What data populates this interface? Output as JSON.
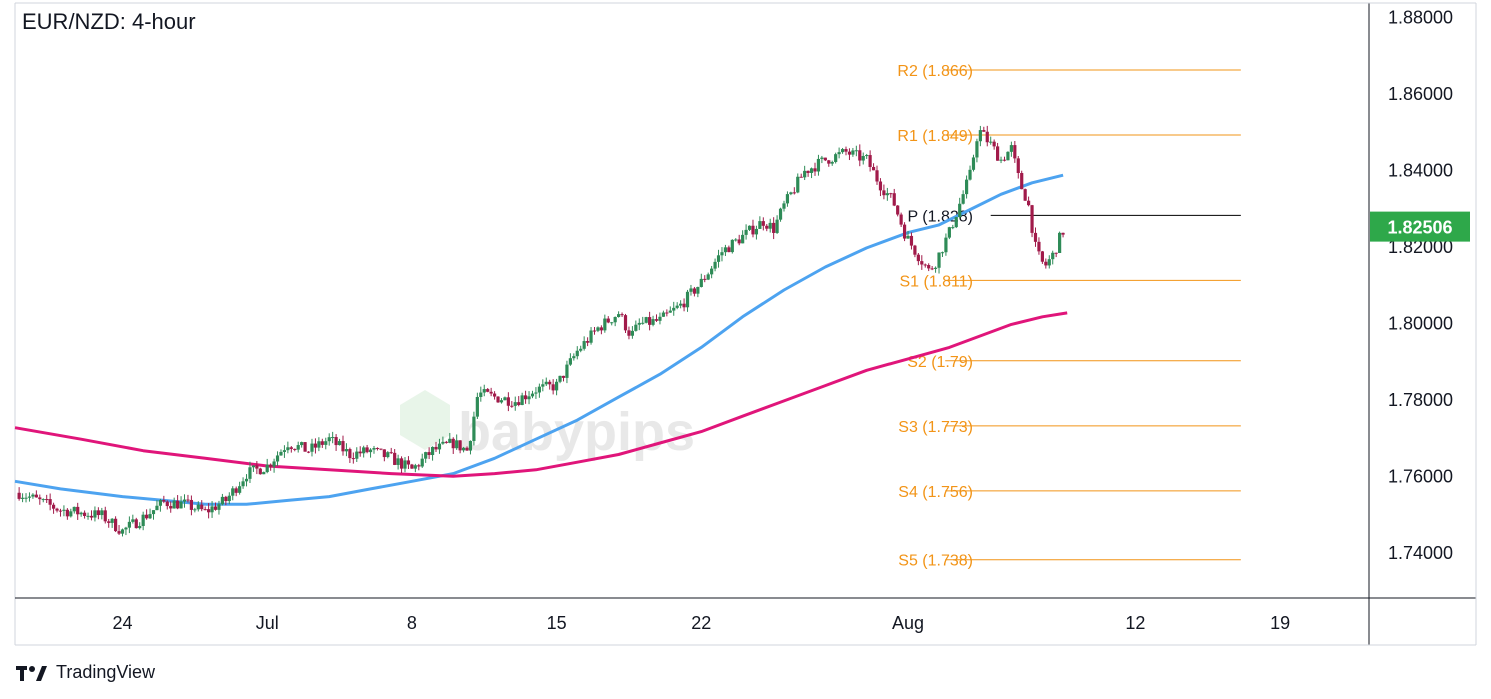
{
  "header": {
    "title": "EUR/NZD: 4-hour"
  },
  "branding": {
    "watermark": "babypips",
    "platform": "TradingView"
  },
  "colors": {
    "up": "#2e8b57",
    "down": "#a11a4a",
    "ma_fast": "#4da3f0",
    "ma_slow": "#e0157a",
    "level": "#f29417",
    "pivot": "#000000",
    "badge": "#2ea84a"
  },
  "chart_data": {
    "type": "candlestick",
    "title": "EUR/NZD: 4-hour",
    "ylim": [
      1.728,
      1.8835
    ],
    "y_ticks": [
      "1.74000",
      "1.76000",
      "1.78000",
      "1.80000",
      "1.82000",
      "1.84000",
      "1.86000",
      "1.88000"
    ],
    "x_ticks": [
      {
        "label": "24",
        "day": 24
      },
      {
        "label": "Jul",
        "day": 31
      },
      {
        "label": "8",
        "day": 38
      },
      {
        "label": "15",
        "day": 45
      },
      {
        "label": "22",
        "day": 52
      },
      {
        "label": "Aug",
        "day": 62
      },
      {
        "label": "12",
        "day": 73
      },
      {
        "label": "19",
        "day": 80
      }
    ],
    "x_range_days": [
      18.8,
      84.3
    ],
    "last_price": "1.82506",
    "levels": [
      {
        "name": "R2",
        "label": "R2 (1.866)",
        "value": 1.866
      },
      {
        "name": "R1",
        "label": "R1 (1.849)",
        "value": 1.849
      },
      {
        "name": "P",
        "label": "P (1.828)",
        "value": 1.828
      },
      {
        "name": "S1",
        "label": "S1 (1.811)",
        "value": 1.811
      },
      {
        "name": "S2",
        "label": "S2 (1.79)",
        "value": 1.79
      },
      {
        "name": "S3",
        "label": "S3 (1.773)",
        "value": 1.773
      },
      {
        "name": "S4",
        "label": "S4 (1.756)",
        "value": 1.756
      },
      {
        "name": "S5",
        "label": "S5 (1.738)",
        "value": 1.738
      }
    ],
    "close_path": [
      [
        19.0,
        1.7555
      ],
      [
        21.0,
        1.751
      ],
      [
        23.0,
        1.7495
      ],
      [
        24.0,
        1.7455
      ],
      [
        25.0,
        1.749
      ],
      [
        26.0,
        1.753
      ],
      [
        27.0,
        1.7525
      ],
      [
        28.0,
        1.7505
      ],
      [
        29.0,
        1.7535
      ],
      [
        30.0,
        1.7605
      ],
      [
        31.0,
        1.7625
      ],
      [
        32.0,
        1.7685
      ],
      [
        33.0,
        1.7665
      ],
      [
        34.0,
        1.7695
      ],
      [
        35.0,
        1.7655
      ],
      [
        36.0,
        1.7665
      ],
      [
        37.0,
        1.7645
      ],
      [
        38.0,
        1.7615
      ],
      [
        39.0,
        1.7665
      ],
      [
        40.0,
        1.7685
      ],
      [
        40.7,
        1.7665
      ],
      [
        41.2,
        1.7815
      ],
      [
        42.0,
        1.7805
      ],
      [
        43.0,
        1.7795
      ],
      [
        44.0,
        1.7825
      ],
      [
        45.0,
        1.7835
      ],
      [
        46.0,
        1.7925
      ],
      [
        47.0,
        1.7985
      ],
      [
        48.0,
        1.8025
      ],
      [
        48.6,
        1.7965
      ],
      [
        49.0,
        1.7995
      ],
      [
        50.0,
        1.8005
      ],
      [
        51.0,
        1.8045
      ],
      [
        52.0,
        1.8105
      ],
      [
        53.0,
        1.8185
      ],
      [
        54.0,
        1.8225
      ],
      [
        55.0,
        1.8265
      ],
      [
        55.5,
        1.8245
      ],
      [
        56.0,
        1.8305
      ],
      [
        57.0,
        1.8395
      ],
      [
        58.0,
        1.8425
      ],
      [
        59.0,
        1.8445
      ],
      [
        60.0,
        1.8425
      ],
      [
        60.6,
        1.8365
      ],
      [
        61.3,
        1.8315
      ],
      [
        61.9,
        1.8225
      ],
      [
        62.5,
        1.8175
      ],
      [
        63.0,
        1.8135
      ],
      [
        63.3,
        1.8155
      ],
      [
        64.0,
        1.8235
      ],
      [
        64.6,
        1.8325
      ],
      [
        65.0,
        1.8385
      ],
      [
        65.4,
        1.8505
      ],
      [
        66.0,
        1.8465
      ],
      [
        66.5,
        1.8425
      ],
      [
        67.0,
        1.8455
      ],
      [
        67.4,
        1.8365
      ],
      [
        67.8,
        1.8315
      ],
      [
        68.2,
        1.8185
      ],
      [
        68.6,
        1.8145
      ],
      [
        69.0,
        1.8175
      ],
      [
        69.3,
        1.8215
      ],
      [
        69.6,
        1.82506
      ]
    ],
    "series": [
      {
        "type": "line",
        "points": [
          [
            18.8,
            1.7585
          ],
          [
            21.0,
            1.7565
          ],
          [
            24.0,
            1.7545
          ],
          [
            26.0,
            1.7535
          ],
          [
            28.0,
            1.7525
          ],
          [
            30.0,
            1.7525
          ],
          [
            32.0,
            1.7535
          ],
          [
            34.0,
            1.7545
          ],
          [
            36.0,
            1.7565
          ],
          [
            38.0,
            1.7585
          ],
          [
            40.0,
            1.7605
          ],
          [
            42.0,
            1.7645
          ],
          [
            44.0,
            1.7695
          ],
          [
            46.0,
            1.7745
          ],
          [
            48.0,
            1.7805
          ],
          [
            50.0,
            1.7865
          ],
          [
            52.0,
            1.7935
          ],
          [
            54.0,
            1.8015
          ],
          [
            56.0,
            1.8085
          ],
          [
            58.0,
            1.8145
          ],
          [
            60.0,
            1.8195
          ],
          [
            62.0,
            1.8235
          ],
          [
            63.5,
            1.8255
          ],
          [
            65.0,
            1.8295
          ],
          [
            66.5,
            1.8335
          ],
          [
            68.0,
            1.8365
          ],
          [
            69.5,
            1.8385
          ]
        ]
      },
      {
        "type": "line",
        "points": [
          [
            18.8,
            1.7725
          ],
          [
            22.0,
            1.7695
          ],
          [
            25.0,
            1.7665
          ],
          [
            28.0,
            1.7645
          ],
          [
            31.0,
            1.7625
          ],
          [
            34.0,
            1.7615
          ],
          [
            37.0,
            1.7605
          ],
          [
            40.0,
            1.7598
          ],
          [
            42.0,
            1.7605
          ],
          [
            44.0,
            1.7615
          ],
          [
            46.0,
            1.7635
          ],
          [
            48.0,
            1.7655
          ],
          [
            50.0,
            1.7685
          ],
          [
            52.0,
            1.7715
          ],
          [
            54.0,
            1.7755
          ],
          [
            56.0,
            1.7795
          ],
          [
            58.0,
            1.7835
          ],
          [
            60.0,
            1.7875
          ],
          [
            62.0,
            1.7905
          ],
          [
            64.0,
            1.7935
          ],
          [
            65.5,
            1.7965
          ],
          [
            67.0,
            1.7995
          ],
          [
            68.5,
            1.8015
          ],
          [
            69.7,
            1.8025
          ]
        ]
      }
    ]
  }
}
